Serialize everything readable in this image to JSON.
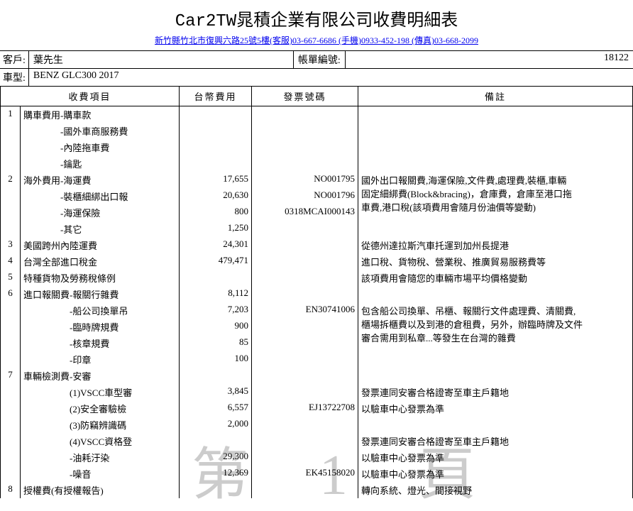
{
  "title": "Car2TW晁積企業有限公司收費明細表",
  "contact_text": "新竹縣竹北市復興六路25號5樓(客服)03-667-6686 (手機)0933-452-198  (傳真)03-668-2099",
  "info": {
    "customer_label": "客戶:",
    "customer_value": "葉先生",
    "bill_label": "帳單編號:",
    "bill_value": "18122",
    "model_label": "車型:",
    "model_value": "BENZ GLC300 2017"
  },
  "headers": {
    "item": "收費項目",
    "amount": "台幣費用",
    "invoice": "發票號碼",
    "note": "備註"
  },
  "rows": [
    {
      "n": "1",
      "item": "購車費用-購車款",
      "amt": "",
      "inv": "",
      "note": ""
    },
    {
      "n": "",
      "item": "　　　　-國外車商服務費",
      "amt": "",
      "inv": "",
      "note": ""
    },
    {
      "n": "",
      "item": "　　　　-內陸拖車費",
      "amt": "",
      "inv": "",
      "note": ""
    },
    {
      "n": "",
      "item": "　　　　-鑰匙",
      "amt": "",
      "inv": "",
      "note": ""
    },
    {
      "n": "2",
      "item": "海外費用-海運費",
      "amt": "17,655",
      "inv": "NO001795",
      "note": "國外出口報關費,海運保險,文件費,處理費,裝櫃,車輛",
      "note_rs": 4
    },
    {
      "n": "",
      "item": "　　　　-裝櫃細綁出口報",
      "amt": "20,630",
      "inv": "NO001796",
      "note": "固定細綁費(Block&bracing)，倉庫費，倉庫至港口拖",
      "nonote": true
    },
    {
      "n": "",
      "item": "　　　　-海運保險",
      "amt": "800",
      "inv": "0318MCAI000143",
      "note": "車費,港口稅(該項費用會隨月份油價等變動)",
      "nonote": true
    },
    {
      "n": "",
      "item": "　　　　-其它",
      "amt": "1,250",
      "inv": "",
      "note": "",
      "nonote": true
    },
    {
      "n": "3",
      "item": "美國跨州內陸運費",
      "amt": "24,301",
      "inv": "",
      "note": "從德州達拉斯汽車托運到加州長提港"
    },
    {
      "n": "4",
      "item": "台灣全部進口稅金",
      "amt": "479,471",
      "inv": "",
      "note": "進口稅、貨物稅、營業稅、推廣貿易服務費等"
    },
    {
      "n": "5",
      "item": "特種貨物及勞務稅條例",
      "amt": "",
      "inv": "",
      "note": "該項費用會隨您的車輛市場平均價格變動"
    },
    {
      "n": "6",
      "item": "進口報關費-報關行雜費",
      "amt": "8,112",
      "inv": "",
      "note": ""
    },
    {
      "n": "",
      "item": "　　　　　-船公司換單吊",
      "amt": "7,203",
      "inv": "EN30741006",
      "note": "包含船公司換單、吊櫃、報關行文件處理費、清關費,",
      "note_rs": 4
    },
    {
      "n": "",
      "item": "　　　　　-臨時牌規費",
      "amt": "900",
      "inv": "",
      "note": "櫃場拆櫃費以及到港的倉租費，另外，辦臨時牌及文件",
      "nonote": true
    },
    {
      "n": "",
      "item": "　　　　　-核章規費",
      "amt": "85",
      "inv": "",
      "note": "審合需用到私章...等發生在台灣的雜費",
      "nonote": true
    },
    {
      "n": "",
      "item": "　　　　　-印章",
      "amt": "100",
      "inv": "",
      "note": "",
      "nonote": true
    },
    {
      "n": "7",
      "item": "車輛檢測費-安審",
      "amt": "",
      "inv": "",
      "note": ""
    },
    {
      "n": "",
      "item": "　　　　　(1)VSCC車型審",
      "amt": "3,845",
      "inv": "",
      "note": "發票連同安審合格證寄至車主戶籍地"
    },
    {
      "n": "",
      "item": "　　　　　(2)安全審驗檢",
      "amt": "6,557",
      "inv": "EJ13722708",
      "note": "以驗車中心發票為準"
    },
    {
      "n": "",
      "item": "　　　　　(3)防竊辨識碼",
      "amt": "2,000",
      "inv": "",
      "note": ""
    },
    {
      "n": "",
      "item": "　　　　　(4)VSCC資格登",
      "amt": "",
      "inv": "",
      "note": "發票連同安審合格證寄至車主戶籍地"
    },
    {
      "n": "",
      "item": "　　　　　-油耗汙染",
      "amt": "29,300",
      "inv": "",
      "note": "以驗車中心發票為準"
    },
    {
      "n": "",
      "item": "　　　　　-噪音",
      "amt": "12,369",
      "inv": "EK45158020",
      "note": "以驗車中心發票為準"
    },
    {
      "n": "8",
      "item": "授權費(有授權報告)",
      "amt": "",
      "inv": "",
      "note": "轉向系統、燈光、間接視野"
    }
  ],
  "watermark": "第 1 頁"
}
